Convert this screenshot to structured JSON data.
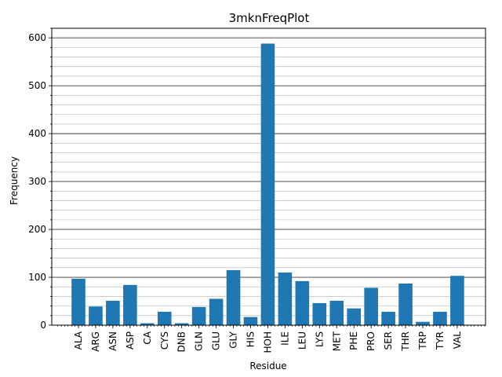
{
  "chart_data": {
    "type": "bar",
    "title": "3mknFreqPlot",
    "xlabel": "Residue",
    "ylabel": "Frequency",
    "categories": [
      "ALA",
      "ARG",
      "ASN",
      "ASP",
      "CA",
      "CYS",
      "DNB",
      "GLN",
      "GLU",
      "GLY",
      "HIS",
      "HOH",
      "ILE",
      "LEU",
      "LYS",
      "MET",
      "PHE",
      "PRO",
      "SER",
      "THR",
      "TRP",
      "TYR",
      "VAL"
    ],
    "values": [
      97,
      39,
      51,
      84,
      4,
      28,
      4,
      38,
      55,
      115,
      17,
      588,
      110,
      92,
      46,
      51,
      35,
      78,
      28,
      87,
      7,
      28,
      103
    ],
    "ylim": [
      0,
      620
    ],
    "yticks": [
      0,
      100,
      200,
      300,
      400,
      500,
      600
    ],
    "grid": "major and minor on y-axis",
    "bar_color": "#1f77b4"
  }
}
